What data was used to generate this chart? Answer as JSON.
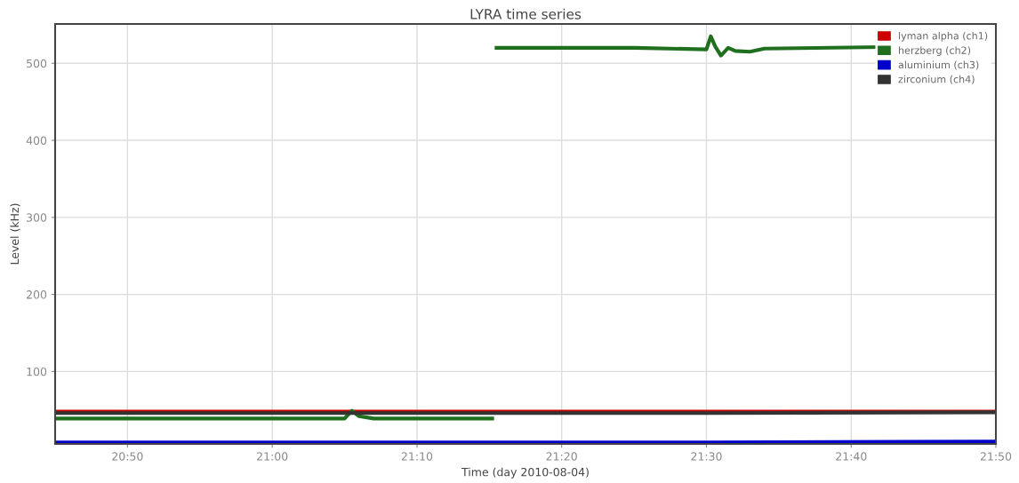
{
  "chart_data": {
    "type": "line",
    "title": "LYRA time series",
    "xlabel": "Time (day 2010-08-04)",
    "ylabel": "Level (kHz)",
    "xlim": [
      20.75,
      21.8333
    ],
    "ylim": [
      6,
      551
    ],
    "xticks": [
      {
        "value": 20.8333,
        "label": "20:50"
      },
      {
        "value": 21.0,
        "label": "21:00"
      },
      {
        "value": 21.1667,
        "label": "21:10"
      },
      {
        "value": 21.3333,
        "label": "21:20"
      },
      {
        "value": 21.5,
        "label": "21:30"
      },
      {
        "value": 21.6667,
        "label": "21:40"
      },
      {
        "value": 21.8333,
        "label": "21:50"
      }
    ],
    "yticks": [
      100,
      200,
      300,
      400,
      500
    ],
    "grid": true,
    "legend": "top right",
    "marker": "none",
    "line_style": "solid",
    "series": [
      {
        "name": "lyman alpha (ch1)",
        "color": "#cc0000",
        "x": [
          20.75,
          21.0917,
          21.8333
        ],
        "values": [
          48,
          48,
          48
        ]
      },
      {
        "name": "herzberg (ch2)",
        "color": "#1f6f1f",
        "x": [
          20.75,
          21.0833,
          21.0917,
          21.1,
          21.1167,
          21.2533,
          21.2558,
          21.2583,
          21.4167,
          21.5,
          21.505,
          21.51,
          21.5167,
          21.525,
          21.5333,
          21.55,
          21.5667,
          21.7
        ],
        "values": [
          39,
          39,
          49,
          42,
          39,
          39,
          null,
          520,
          520,
          518,
          535,
          522,
          510,
          520,
          516,
          515,
          519,
          521
        ]
      },
      {
        "name": "aluminium (ch3)",
        "color": "#0000cc",
        "x": [
          20.75,
          21.5,
          21.8333
        ],
        "values": [
          8,
          8,
          9
        ]
      },
      {
        "name": "zirconium (ch4)",
        "color": "#333333",
        "x": [
          20.75,
          21.5,
          21.8333
        ],
        "values": [
          46,
          46,
          47
        ]
      }
    ]
  }
}
